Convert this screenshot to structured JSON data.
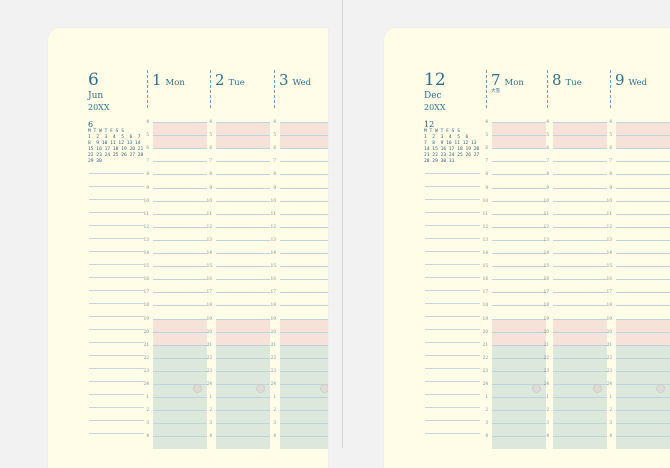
{
  "pages": [
    {
      "id": "left",
      "month_day": "6",
      "month": "Jun",
      "year": "20XX",
      "mini_calendar": {
        "title": "6",
        "header": "M T W T F S S",
        "rows": [
          "1  2  3  4  5  6  7",
          "8  9 10 11 12 13 14",
          "15 16 17 18 19 20 21",
          "22 23 24 25 26 27 28",
          "29 30"
        ]
      },
      "days": [
        {
          "num": "1",
          "name": "Mon",
          "sub": ""
        },
        {
          "num": "2",
          "name": "Tue",
          "sub": ""
        },
        {
          "num": "3",
          "name": "Wed",
          "sub": ""
        }
      ]
    },
    {
      "id": "right",
      "month_day": "12",
      "month": "Dec",
      "year": "20XX",
      "mini_calendar": {
        "title": "12",
        "header": "M T W T F S S",
        "rows": [
          "1  2  3  4  5  6",
          "7  8  9 10 11 12 13",
          "14 15 16 17 18 19 20",
          "21 22 23 24 25 26 27",
          "28 29 30 31"
        ]
      },
      "days": [
        {
          "num": "7",
          "name": "Mon",
          "sub": "大雪"
        },
        {
          "num": "8",
          "name": "Tue",
          "sub": ""
        },
        {
          "num": "9",
          "name": "Wed",
          "sub": ""
        }
      ]
    }
  ],
  "hour_labels": [
    "4",
    "5",
    "6",
    "7",
    "8",
    "9",
    "10",
    "11",
    "12",
    "13",
    "14",
    "15",
    "16",
    "17",
    "18",
    "19",
    "20",
    "21",
    "22",
    "23",
    "24",
    "1",
    "2",
    "3",
    "4"
  ],
  "colors": {
    "paper": "#fffde8",
    "accent": "#2f6f8a",
    "pink_band": "#f6e2d8",
    "green_band": "#dde8dc",
    "line": "#bfd3dc"
  }
}
